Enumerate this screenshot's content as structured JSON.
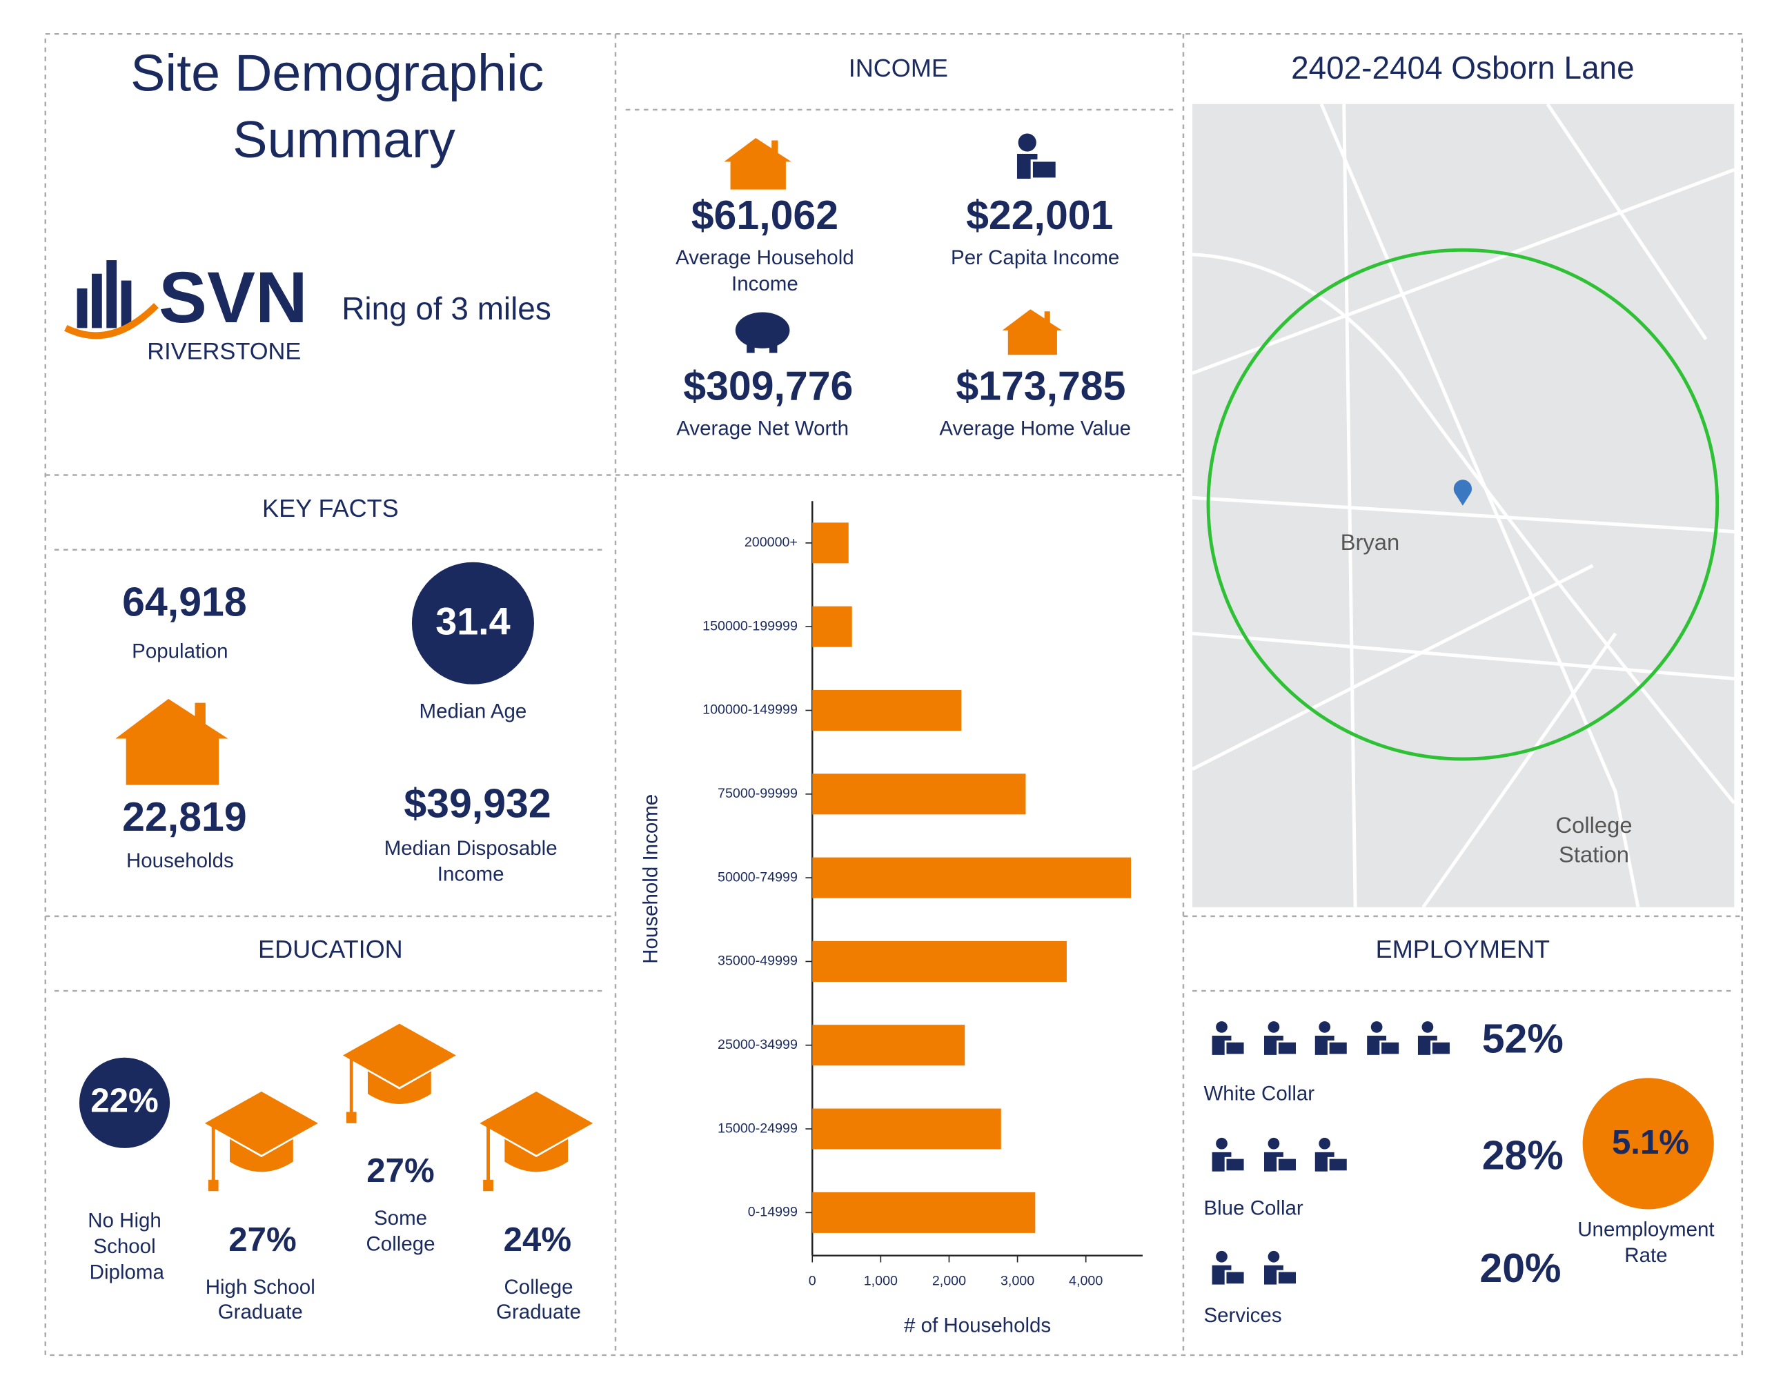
{
  "header": {
    "title_lines": [
      "Site Demographic",
      "Summary"
    ],
    "brand": "SVN",
    "brand_sub": "RIVERSTONE",
    "ring": "Ring of 3 miles"
  },
  "income": {
    "title": "INCOME",
    "items": [
      {
        "value": "$61,062",
        "label_lines": [
          "Average Household",
          "Income"
        ]
      },
      {
        "value": "$22,001",
        "label_lines": [
          "Per Capita Income"
        ]
      },
      {
        "value": "$309,776",
        "label_lines": [
          "Average Net Worth"
        ]
      },
      {
        "value": "$173,785",
        "label_lines": [
          "Average Home Value"
        ]
      }
    ]
  },
  "key_facts": {
    "title": "KEY FACTS",
    "population": {
      "value": "64,918",
      "label": "Population"
    },
    "median_age": {
      "value": "31.4",
      "label": "Median Age"
    },
    "households": {
      "value": "22,819",
      "label": "Households"
    },
    "median_disposable_income": {
      "value": "$39,932",
      "label_lines": [
        "Median Disposable",
        "Income"
      ]
    }
  },
  "education": {
    "title": "EDUCATION",
    "items": [
      {
        "value": "22%",
        "label_lines": [
          "No High",
          "School",
          "Diploma"
        ]
      },
      {
        "value": "27%",
        "label_lines": [
          "High School",
          "Graduate"
        ]
      },
      {
        "value": "27%",
        "label_lines": [
          "Some",
          "College"
        ]
      },
      {
        "value": "24%",
        "label_lines": [
          "College",
          "Graduate"
        ]
      }
    ]
  },
  "map": {
    "title": "2402-2404 Osborn Lane",
    "places": [
      {
        "label_lines": [
          "Bryan"
        ]
      },
      {
        "label_lines": [
          "College",
          "Station"
        ]
      }
    ]
  },
  "employment": {
    "title": "EMPLOYMENT",
    "items": [
      {
        "value": "52%",
        "label": "White Collar"
      },
      {
        "value": "28%",
        "label": "Blue Collar"
      },
      {
        "value": "20%",
        "label": "Services"
      }
    ],
    "unemployment": {
      "value": "5.1%",
      "label_lines": [
        "Unemployment",
        "Rate"
      ]
    }
  },
  "chart_data": {
    "type": "bar",
    "orientation": "horizontal",
    "y_label": "Household Income",
    "x_label": "# of Households",
    "categories": [
      "200000+",
      "150000-199999",
      "100000-149999",
      "75000-99999",
      "50000-74999",
      "35000-49999",
      "25000-34999",
      "15000-24999",
      "0-14999"
    ],
    "values": [
      530,
      580,
      2180,
      3120,
      4660,
      3720,
      2230,
      2760,
      3260
    ],
    "color": "#f07d00",
    "xlim": [
      0,
      4830
    ],
    "xticks": [
      0,
      {
        "value": 1000,
        "label": "1,000"
      },
      {
        "value": 2000,
        "label": "2,000"
      },
      {
        "value": 3000,
        "label": "3,000"
      },
      {
        "value": 4000,
        "label": "4,000"
      }
    ]
  }
}
